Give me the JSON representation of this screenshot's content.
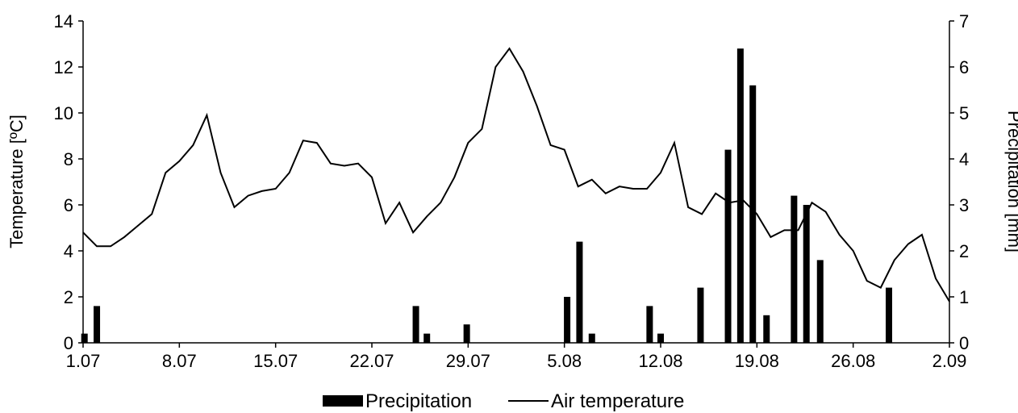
{
  "chart_data": {
    "type": "bar+line",
    "x_start": "2024-07-01",
    "x_tick_labels": [
      "1.07",
      "8.07",
      "15.07",
      "22.07",
      "29.07",
      "5.08",
      "12.08",
      "19.08",
      "26.08",
      "2.09"
    ],
    "x_tick_days": [
      0,
      7,
      14,
      21,
      28,
      35,
      42,
      49,
      56,
      63
    ],
    "left_axis": {
      "label": "Temperature [ºC]",
      "ylim": [
        0,
        14
      ],
      "ticks": [
        "0",
        "2",
        "4",
        "6",
        "8",
        "10",
        "12",
        "14"
      ]
    },
    "right_axis": {
      "label": "Precipitation [mm]",
      "ylim": [
        0,
        7
      ],
      "ticks": [
        "0",
        "1",
        "2",
        "3",
        "4",
        "5",
        "6",
        "7"
      ]
    },
    "legend": {
      "position": "bottom",
      "items": [
        "Precipitation",
        "Air temperature"
      ]
    },
    "series": [
      {
        "name": "Air temperature",
        "type": "line",
        "axis": "left",
        "color": "#000000",
        "values": [
          4.8,
          4.2,
          4.2,
          4.6,
          5.1,
          5.6,
          7.4,
          7.9,
          8.6,
          9.9,
          7.4,
          5.9,
          6.4,
          6.6,
          6.7,
          7.4,
          8.8,
          8.7,
          7.8,
          7.7,
          7.8,
          7.2,
          5.2,
          6.1,
          4.8,
          5.5,
          6.1,
          7.2,
          8.7,
          9.3,
          12.0,
          12.8,
          11.8,
          10.3,
          8.6,
          8.4,
          6.8,
          7.1,
          6.5,
          6.8,
          6.7,
          6.7,
          7.4,
          8.7,
          5.9,
          5.6,
          6.5,
          6.1,
          6.2,
          5.6,
          4.6,
          4.9,
          4.9,
          6.1,
          5.7,
          4.7,
          4.0,
          2.7,
          2.4,
          3.6,
          4.3,
          4.7,
          2.8,
          1.8
        ],
        "x_days": [
          0,
          1,
          2,
          3,
          4,
          5,
          6,
          7,
          8,
          9,
          10,
          11,
          12,
          13,
          14,
          15,
          16,
          17,
          18,
          19,
          20,
          21,
          22,
          23,
          24,
          25,
          26,
          27,
          28,
          29,
          30,
          31,
          32,
          33,
          34,
          35,
          36,
          37,
          38,
          39,
          40,
          41,
          42,
          43,
          44,
          45,
          46,
          47,
          48,
          49,
          50,
          51,
          52,
          53,
          54,
          55,
          56,
          57,
          58,
          59,
          60,
          61,
          62,
          63
        ]
      },
      {
        "name": "Precipitation",
        "type": "bar",
        "axis": "right",
        "color": "#000000",
        "x_days": [
          0.1,
          1.0,
          24.2,
          25.0,
          27.9,
          35.2,
          36.1,
          37.0,
          41.2,
          42.0,
          44.9,
          46.9,
          47.8,
          48.7,
          49.7,
          51.7,
          52.6,
          53.6,
          58.6
        ],
        "values": [
          0.2,
          0.8,
          0.8,
          0.2,
          0.4,
          1.0,
          2.2,
          0.2,
          0.8,
          0.2,
          1.2,
          4.2,
          6.4,
          5.6,
          0.6,
          3.2,
          3.0,
          1.8,
          1.2
        ]
      }
    ]
  }
}
